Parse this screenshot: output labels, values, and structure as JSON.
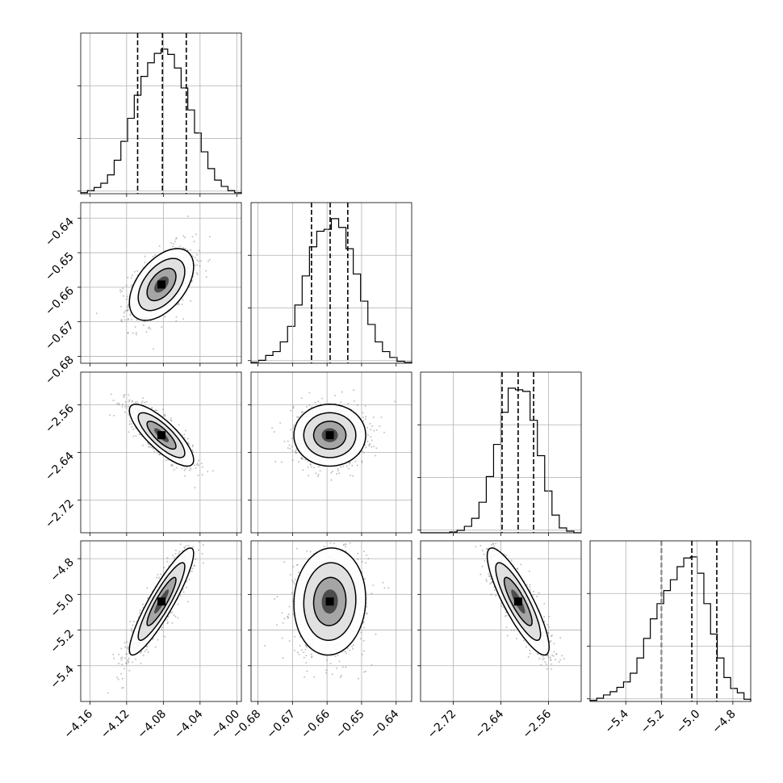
{
  "chart_data": {
    "type": "corner",
    "description_free": true,
    "grid": true,
    "quantile_lines": "dashed",
    "params": [
      {
        "range": [
          -4.17,
          -3.995
        ],
        "ticks": [
          -4.16,
          -4.12,
          -4.08,
          -4.04,
          -4.0
        ],
        "tick_labels": [
          "−4.16",
          "−4.12",
          "−4.08",
          "−4.04",
          "−4.00"
        ],
        "quantiles": [
          -4.108,
          -4.081,
          -4.055
        ],
        "mean": -4.082,
        "sd": 0.0175,
        "hist": [
          1,
          3,
          6,
          10,
          18,
          32,
          50,
          72,
          94,
          112,
          125,
          134,
          138,
          133,
          120,
          101,
          80,
          58,
          40,
          24,
          13,
          7,
          3,
          1
        ]
      },
      {
        "range": [
          -0.682,
          -0.6355
        ],
        "ticks": [
          -0.68,
          -0.67,
          -0.66,
          -0.65,
          -0.64
        ],
        "tick_labels": [
          "−0.68",
          "−0.67",
          "−0.66",
          "−0.65",
          "−0.64"
        ],
        "quantiles": [
          -0.6645,
          -0.6591,
          -0.654
        ],
        "mean": -0.6592,
        "sd": 0.0052,
        "hist": [
          1,
          3,
          8,
          12,
          22,
          38,
          60,
          90,
          120,
          136,
          138,
          149,
          140,
          118,
          92,
          64,
          40,
          22,
          12,
          6,
          2,
          1
        ]
      },
      {
        "range": [
          -2.775,
          -2.505
        ],
        "ticks": [
          -2.72,
          -2.64,
          -2.56
        ],
        "tick_labels": [
          "−2.72",
          "−2.64",
          "−2.56"
        ],
        "quantiles": [
          -2.638,
          -2.611,
          -2.585
        ],
        "mean": -2.611,
        "sd": 0.026,
        "hist": [
          0,
          0,
          0,
          0,
          1,
          3,
          8,
          18,
          38,
          70,
          110,
          150,
          180,
          178,
          176,
          140,
          96,
          52,
          22,
          6,
          2,
          0
        ]
      },
      {
        "range": [
          -5.6,
          -4.7
        ],
        "ticks": [
          -5.4,
          -5.2,
          -5.0,
          -4.8
        ],
        "tick_labels": [
          "−5.4",
          "−5.2",
          "−5.0",
          "−4.8"
        ],
        "quantiles": [
          -5.2,
          -5.03,
          -4.89
        ],
        "mean": -5.04,
        "sd": 0.15,
        "hist": [
          1,
          3,
          6,
          9,
          13,
          18,
          26,
          40,
          58,
          76,
          90,
          102,
          112,
          124,
          132,
          133,
          118,
          90,
          62,
          40,
          22,
          12,
          8,
          2
        ]
      }
    ],
    "correlations": {
      "1-0": 0.5,
      "2-0": -0.8,
      "2-1": 0.0,
      "3-0": 0.9,
      "3-1": 0.05,
      "3-2": -0.85
    }
  }
}
